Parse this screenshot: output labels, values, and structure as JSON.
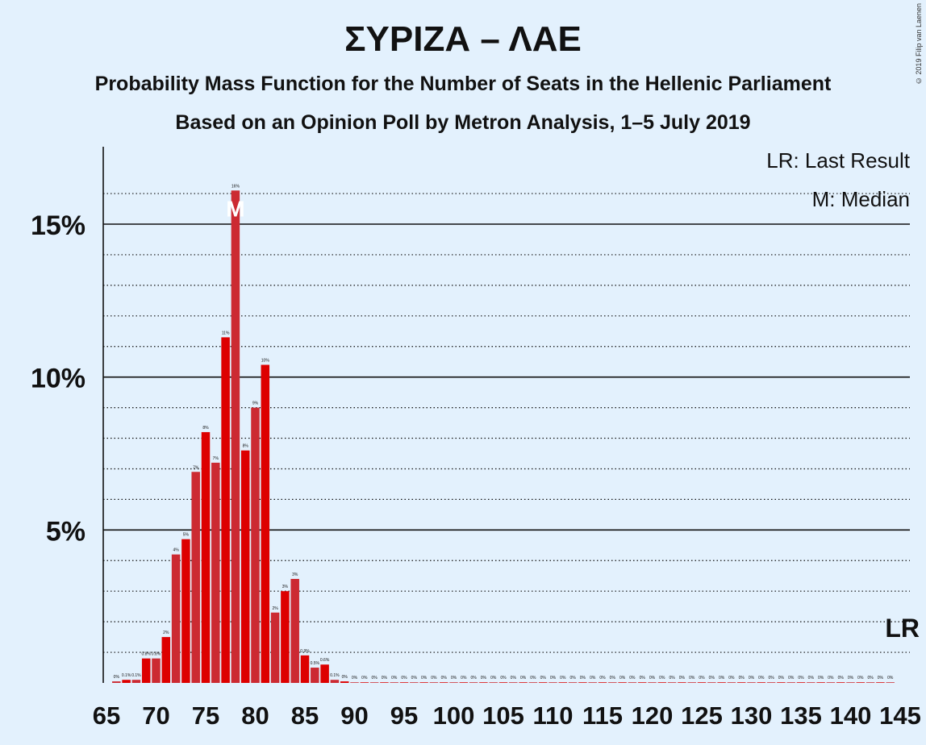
{
  "title": "ΣΥΡΙΖΑ – ΛΑΕ",
  "subtitle": "Probability Mass Function for the Number of Seats in the Hellenic Parliament",
  "subtitle2": "Based on an Opinion Poll by Metron Analysis, 1–5 July 2019",
  "copyright": "© 2019 Filip van Laenen",
  "legend": {
    "last_result": "LR: Last Result",
    "median": "M: Median"
  },
  "colors": {
    "background": "#e3f1fd",
    "bar": "#cc2a32",
    "bar_alt": "#dd0000",
    "median_text": "#ffffff"
  },
  "chart_data": {
    "type": "bar",
    "x_start": 66,
    "x_end": 144,
    "x_ticks": [
      65,
      70,
      75,
      80,
      85,
      90,
      95,
      100,
      105,
      110,
      115,
      120,
      125,
      130,
      135,
      140,
      145
    ],
    "y_ticks": [
      {
        "value": 5,
        "label": "5%"
      },
      {
        "value": 10,
        "label": "10%"
      },
      {
        "value": 15,
        "label": "15%"
      }
    ],
    "ylim": [
      0,
      17.5
    ],
    "dotted_gridlines": [
      1,
      2,
      3,
      4,
      6,
      7,
      8,
      9,
      11,
      12,
      13,
      14,
      16
    ],
    "values": [
      0.05,
      0.1,
      0.1,
      0.8,
      0.8,
      1.5,
      4.2,
      4.7,
      6.9,
      8.2,
      7.2,
      11.3,
      16.1,
      7.6,
      9.0,
      10.4,
      2.3,
      3.0,
      3.4,
      0.9,
      0.5,
      0.6,
      0.1,
      0.05,
      0.02,
      0.02,
      0.02,
      0.02,
      0.02,
      0.02,
      0.02,
      0.02,
      0.02,
      0.02,
      0.02,
      0.02,
      0.02,
      0.02,
      0.02,
      0.02,
      0.02,
      0.02,
      0.02,
      0.02,
      0.02,
      0.02,
      0.02,
      0.02,
      0.02,
      0.02,
      0.02,
      0.02,
      0.02,
      0.02,
      0.02,
      0.02,
      0.02,
      0.02,
      0.02,
      0.02,
      0.02,
      0.02,
      0.02,
      0.02,
      0.02,
      0.02,
      0.02,
      0.02,
      0.02,
      0.02,
      0.02,
      0.02,
      0.02,
      0.02,
      0.02,
      0.02,
      0.02,
      0.02,
      0.02
    ],
    "labels": [
      "0%",
      "0.1%",
      "0.1%",
      "0.8%",
      "0.8%",
      "2%",
      "4%",
      "5%",
      "7%",
      "8%",
      "7%",
      "11%",
      "16%",
      "8%",
      "9%",
      "10%",
      "2%",
      "3%",
      "3%",
      "0.9%",
      "0.5%",
      "0.6%",
      "0.1%",
      "0%",
      "0%",
      "0%",
      "0%",
      "0%",
      "0%",
      "0%",
      "0%",
      "0%",
      "0%",
      "0%",
      "0%",
      "0%",
      "0%",
      "0%",
      "0%",
      "0%",
      "0%",
      "0%",
      "0%",
      "0%",
      "0%",
      "0%",
      "0%",
      "0%",
      "0%",
      "0%",
      "0%",
      "0%",
      "0%",
      "0%",
      "0%",
      "0%",
      "0%",
      "0%",
      "0%",
      "0%",
      "0%",
      "0%",
      "0%",
      "0%",
      "0%",
      "0%",
      "0%",
      "0%",
      "0%",
      "0%",
      "0%",
      "0%",
      "0%",
      "0%",
      "0%",
      "0%",
      "0%",
      "0%",
      "0%"
    ],
    "median_seat": 78,
    "median_label": "M",
    "last_result_seat": 144,
    "last_result_label": "LR"
  }
}
